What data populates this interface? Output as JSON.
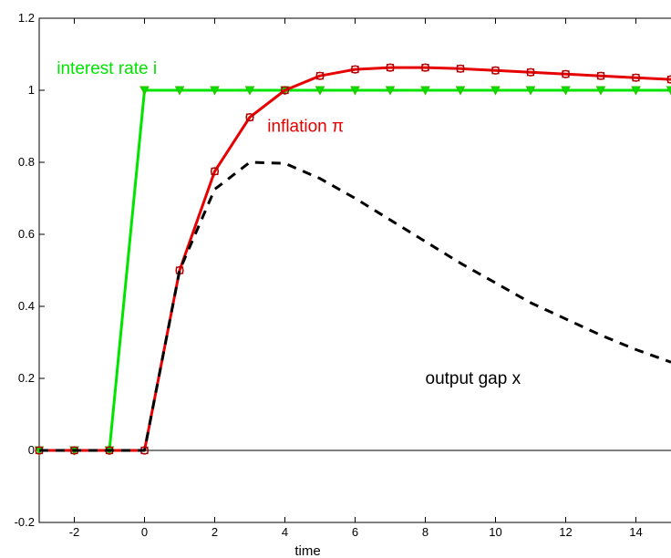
{
  "chart_data": {
    "type": "line",
    "title": "",
    "xlabel": "time",
    "ylabel": "",
    "xlim": [
      -3,
      15
    ],
    "ylim": [
      -0.2,
      1.2
    ],
    "xticks": [
      -2,
      0,
      2,
      4,
      6,
      8,
      10,
      12,
      14
    ],
    "yticks": [
      -0.2,
      0,
      0.2,
      0.4,
      0.6,
      0.8,
      1,
      1.2
    ],
    "grid": false,
    "reference_line_y": 0,
    "series": [
      {
        "name": "interest rate i",
        "color": "#00e400",
        "marker": "triangle-down",
        "linestyle": "solid",
        "x": [
          -3,
          -2,
          -1,
          0,
          1,
          2,
          3,
          4,
          5,
          6,
          7,
          8,
          9,
          10,
          11,
          12,
          13,
          14,
          15
        ],
        "y": [
          0,
          0,
          0,
          1,
          1,
          1,
          1,
          1,
          1,
          1,
          1,
          1,
          1,
          1,
          1,
          1,
          1,
          1,
          1
        ]
      },
      {
        "name": "inflation π",
        "color": "#e60000",
        "marker": "circle-square",
        "linestyle": "solid",
        "x": [
          -3,
          -2,
          -1,
          0,
          1,
          2,
          3,
          4,
          5,
          6,
          7,
          8,
          9,
          10,
          11,
          12,
          13,
          14,
          15
        ],
        "y": [
          0,
          0,
          0,
          0,
          0.5,
          0.775,
          0.925,
          1.0,
          1.04,
          1.058,
          1.063,
          1.063,
          1.06,
          1.055,
          1.05,
          1.045,
          1.04,
          1.035,
          1.03
        ]
      },
      {
        "name": "output gap x",
        "color": "#000000",
        "marker": "none",
        "linestyle": "dashed",
        "x": [
          -3,
          -2,
          -1,
          0,
          1,
          2,
          3,
          4,
          5,
          6,
          7,
          8,
          9,
          10,
          11,
          12,
          13,
          14,
          15
        ],
        "y": [
          0,
          0,
          0,
          0,
          0.5,
          0.725,
          0.8,
          0.797,
          0.755,
          0.7,
          0.64,
          0.58,
          0.52,
          0.465,
          0.41,
          0.365,
          0.32,
          0.28,
          0.245
        ]
      }
    ],
    "labels": [
      {
        "text": "interest rate i",
        "color": "#00e400",
        "x": -2.5,
        "y": 1.045
      },
      {
        "text": "inflation π",
        "color": "#e60000",
        "x": 3.5,
        "y": 0.885
      },
      {
        "text": "output gap x",
        "color": "#000000",
        "x": 8,
        "y": 0.185
      }
    ]
  }
}
